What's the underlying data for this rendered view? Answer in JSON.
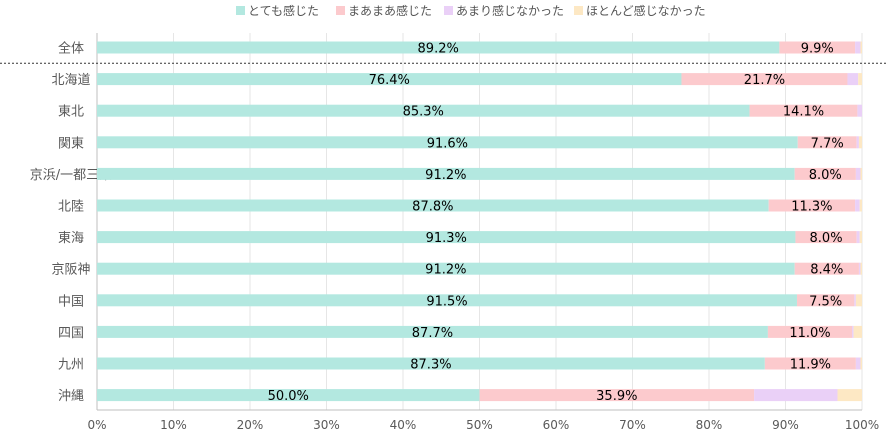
{
  "chart_data": {
    "type": "bar",
    "orientation": "horizontal",
    "stacked": true,
    "categories": [
      "全体",
      "北海道",
      "東北",
      "関東",
      "京浜/一都三県",
      "北陸",
      "東海",
      "京阪神",
      "中国",
      "四国",
      "九州",
      "沖縄"
    ],
    "series": [
      {
        "name": "とても感じた",
        "color": "#b3e8e0",
        "values": [
          89.2,
          76.4,
          85.3,
          91.6,
          91.2,
          87.8,
          91.3,
          91.2,
          91.5,
          87.7,
          87.3,
          50.0
        ],
        "labels": [
          "89.2%",
          "76.4%",
          "85.3%",
          "91.6%",
          "91.2%",
          "87.8%",
          "91.3%",
          "91.2%",
          "91.5%",
          "87.7%",
          "87.3%",
          "50.0%"
        ]
      },
      {
        "name": "まあまあ感じた",
        "color": "#fccacd",
        "values": [
          9.9,
          21.7,
          14.1,
          7.7,
          8.0,
          11.3,
          8.0,
          8.4,
          7.5,
          11.0,
          11.9,
          35.9
        ],
        "labels": [
          "9.9%",
          "21.7%",
          "14.1%",
          "7.7%",
          "8.0%",
          "11.3%",
          "8.0%",
          "8.4%",
          "7.5%",
          "11.0%",
          "11.9%",
          "35.9%"
        ]
      },
      {
        "name": "あまり感じなかった",
        "color": "#ead0f7",
        "values": [
          0.7,
          1.4,
          0.6,
          0.3,
          0.6,
          0.6,
          0.4,
          0.2,
          0.2,
          0.2,
          0.6,
          10.9
        ],
        "labels": []
      },
      {
        "name": "ほとんど感じなかった",
        "color": "#fde8c4",
        "values": [
          0.2,
          0.5,
          0.0,
          0.4,
          0.2,
          0.3,
          0.3,
          0.2,
          0.8,
          1.1,
          0.2,
          3.2
        ],
        "labels": []
      }
    ],
    "xlim": [
      0,
      100
    ],
    "x_ticks": [
      "0%",
      "10%",
      "20%",
      "30%",
      "40%",
      "50%",
      "60%",
      "70%",
      "80%",
      "90%",
      "100%"
    ],
    "grid": true,
    "legend_position": "top",
    "separator_after_first_category": true
  }
}
